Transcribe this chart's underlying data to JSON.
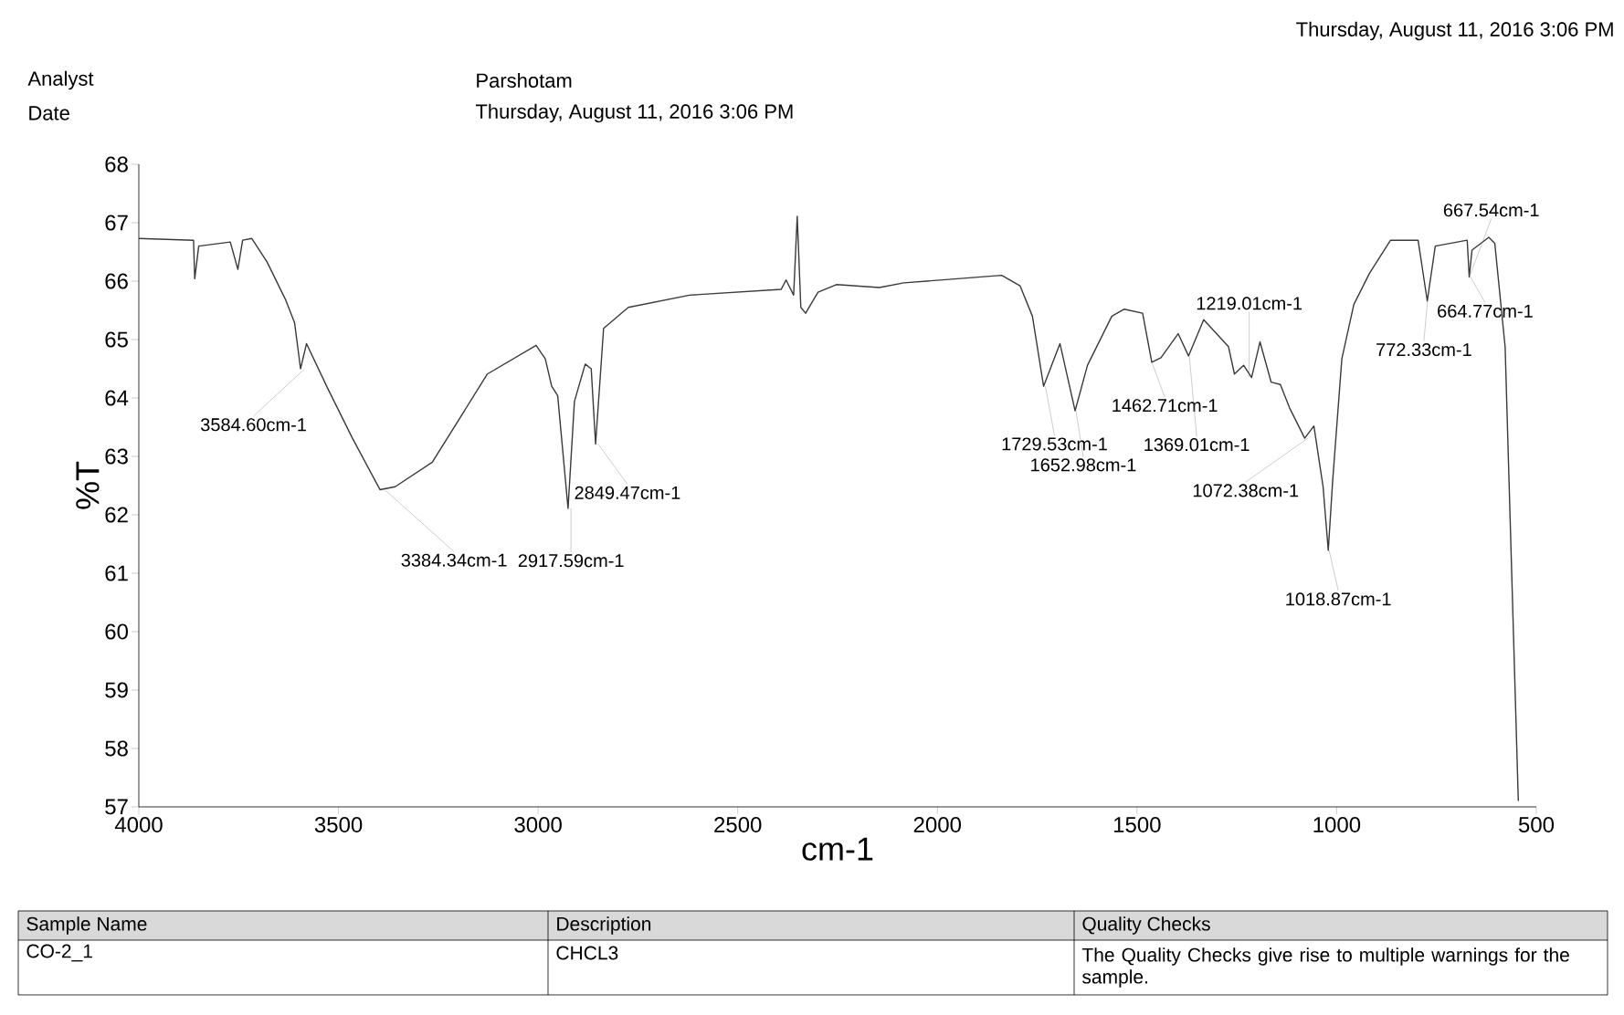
{
  "chart_data": {
    "type": "line",
    "xlabel": "cm-1",
    "ylabel": "%T",
    "xlim": [
      4000,
      500
    ],
    "ylim": [
      57,
      68
    ],
    "xticks": [
      4000,
      3500,
      3000,
      2500,
      2000,
      1500,
      1000,
      500
    ],
    "yticks": [
      57,
      58,
      59,
      60,
      61,
      62,
      63,
      64,
      65,
      66,
      67,
      68
    ],
    "grid": false,
    "series": [
      {
        "color": "#3a3a3a",
        "x": [
          4000,
          3863,
          3860,
          3850,
          3771,
          3752,
          3740,
          3717,
          3679,
          3633,
          3610,
          3595,
          3580,
          3526,
          3465,
          3396,
          3358,
          3265,
          3127,
          3005,
          2982,
          2966,
          2951,
          2925,
          2909,
          2882,
          2867,
          2856,
          2836,
          2774,
          2621,
          2391,
          2379,
          2360,
          2351,
          2342,
          2330,
          2299,
          2253,
          2145,
          2084,
          1839,
          1793,
          1762,
          1734,
          1693,
          1655,
          1624,
          1563,
          1532,
          1486,
          1463,
          1440,
          1397,
          1371,
          1333,
          1271,
          1256,
          1233,
          1213,
          1192,
          1164,
          1141,
          1118,
          1080,
          1057,
          1034,
          1021,
          1010,
          987,
          957,
          918,
          865,
          796,
          773,
          753,
          673,
          668,
          661,
          619,
          604,
          578,
          545
        ],
        "values": [
          66.73,
          66.7,
          66.04,
          66.6,
          66.67,
          66.2,
          66.7,
          66.73,
          66.33,
          65.69,
          65.29,
          64.5,
          64.93,
          64.15,
          63.31,
          62.43,
          62.48,
          62.9,
          64.41,
          64.9,
          64.67,
          64.2,
          64.04,
          62.11,
          63.94,
          64.58,
          64.5,
          63.21,
          65.19,
          65.55,
          65.76,
          65.86,
          66.02,
          65.76,
          67.11,
          65.55,
          65.45,
          65.81,
          65.94,
          65.89,
          65.97,
          66.1,
          65.92,
          65.4,
          64.2,
          64.93,
          63.78,
          64.56,
          65.4,
          65.52,
          65.45,
          64.61,
          64.69,
          65.1,
          64.72,
          65.34,
          64.88,
          64.41,
          64.56,
          64.35,
          64.96,
          64.27,
          64.23,
          63.83,
          63.31,
          63.52,
          62.48,
          61.39,
          62.58,
          64.67,
          65.6,
          66.13,
          66.7,
          66.7,
          65.66,
          66.6,
          66.7,
          66.07,
          66.53,
          66.75,
          66.65,
          64.87,
          57.1
        ]
      }
    ],
    "annotations": [
      {
        "text": "3584.60cm-1",
        "x": 3584.6,
        "y": 64.5
      },
      {
        "text": "3384.34cm-1",
        "x": 3384.34,
        "y": 62.43
      },
      {
        "text": "2917.59cm-1",
        "x": 2917.59,
        "y": 62.11
      },
      {
        "text": "2849.47cm-1",
        "x": 2849.47,
        "y": 63.21
      },
      {
        "text": "1729.53cm-1",
        "x": 1729.53,
        "y": 64.2
      },
      {
        "text": "1652.98cm-1",
        "x": 1652.98,
        "y": 63.78
      },
      {
        "text": "1462.71cm-1",
        "x": 1462.71,
        "y": 64.61
      },
      {
        "text": "1369.01cm-1",
        "x": 1369.01,
        "y": 64.72
      },
      {
        "text": "1219.01cm-1",
        "x": 1219.01,
        "y": 64.35
      },
      {
        "text": "1072.38cm-1",
        "x": 1072.38,
        "y": 63.31
      },
      {
        "text": "1018.87cm-1",
        "x": 1018.87,
        "y": 61.39
      },
      {
        "text": "772.33cm-1",
        "x": 772.33,
        "y": 65.66
      },
      {
        "text": "667.54cm-1",
        "x": 667.54,
        "y": 66.07
      },
      {
        "text": "664.77cm-1",
        "x": 664.77,
        "y": 66.07
      },
      "Analyst",
      "Parshotam",
      "Date",
      "Thursday, August 11, 2016 3:06 PM",
      "Thursday, August 11, 2016 3:06 PM",
      "Sample Name",
      "Description",
      "Quality Checks",
      "CO-2_1",
      "CHCL3",
      "The Quality Checks give rise to multiple warnings for the sample."
    ]
  }
}
